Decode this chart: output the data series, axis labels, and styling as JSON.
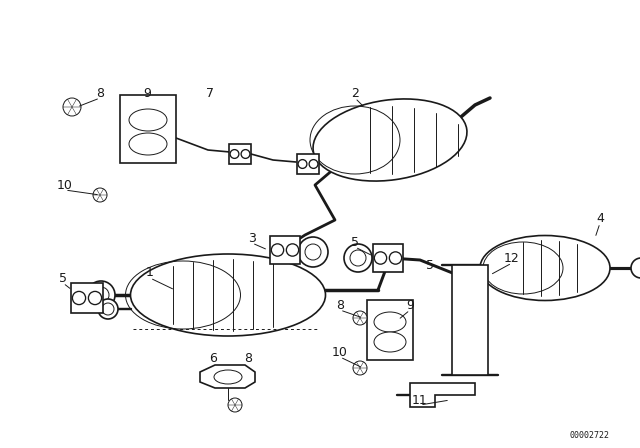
{
  "bg_color": "#ffffff",
  "line_color": "#1a1a1a",
  "fig_width": 6.4,
  "fig_height": 4.48,
  "dpi": 100,
  "diagram_id": "00002722",
  "lw_pipe": 2.5,
  "lw_part": 1.2,
  "lw_thin": 0.7,
  "fs_label": 9,
  "fs_id": 6
}
